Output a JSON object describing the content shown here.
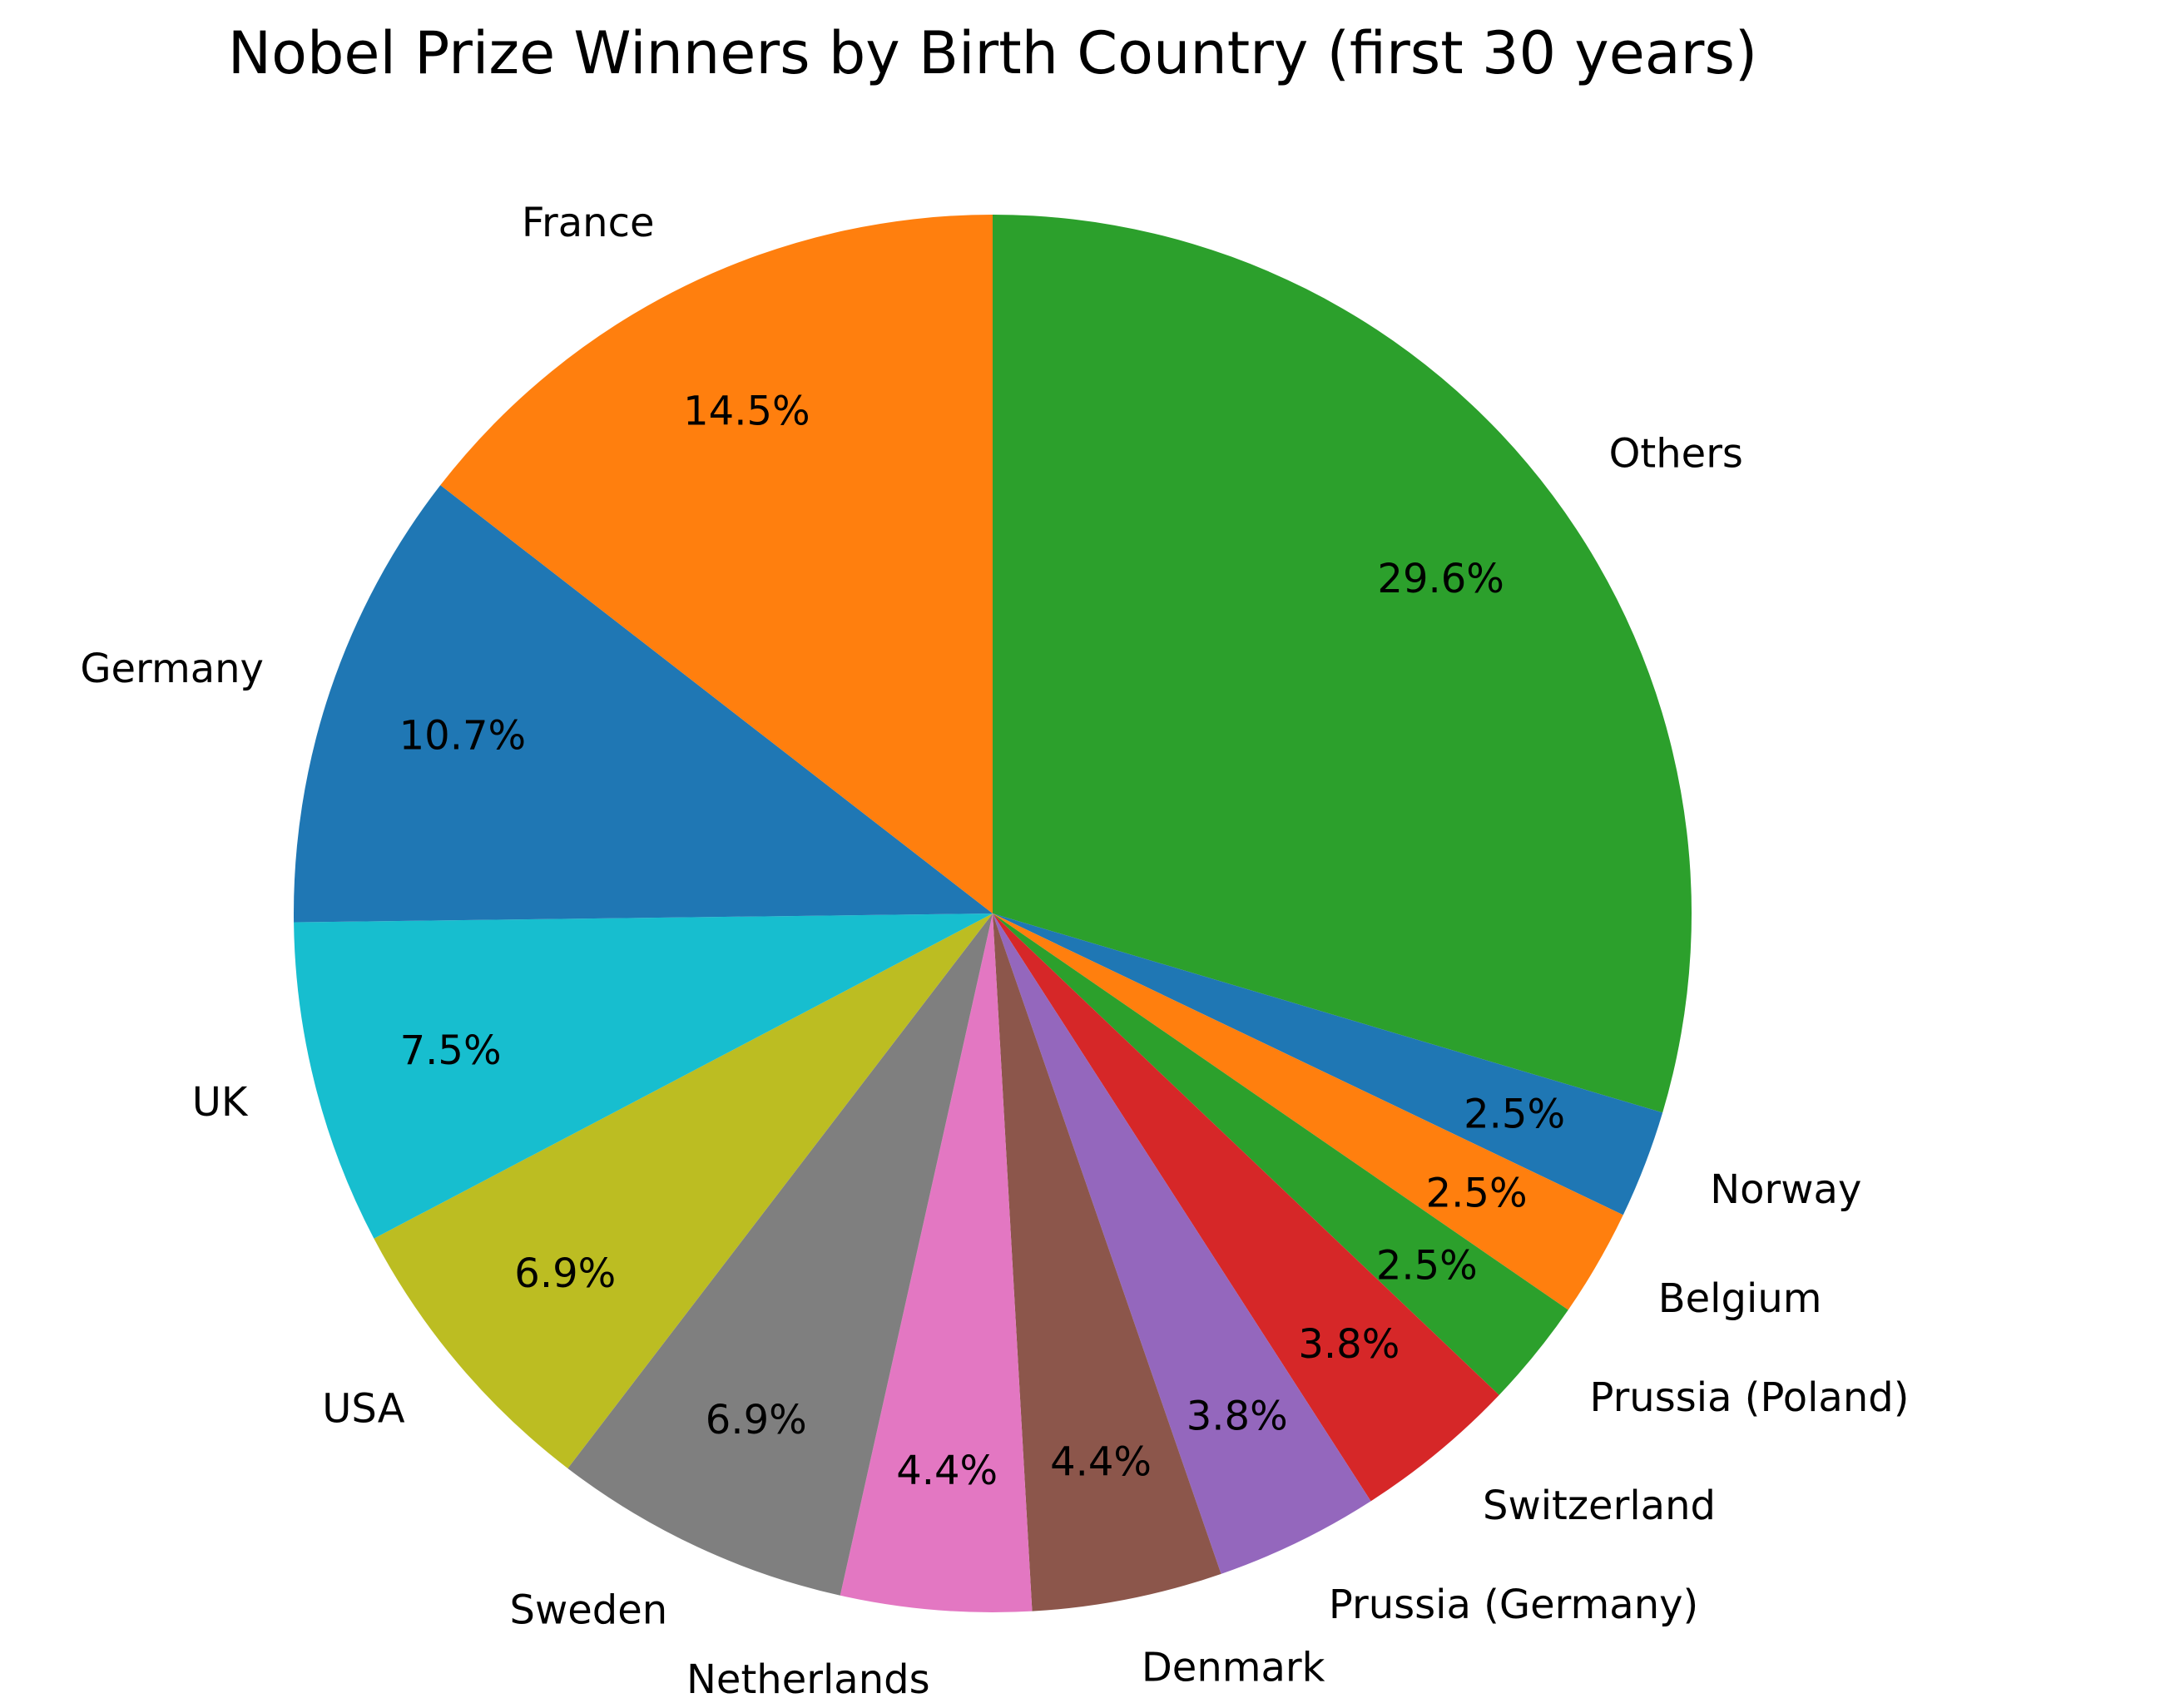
{
  "chart_data": {
    "type": "pie",
    "title": "Nobel Prize Winners by Birth Country (first 30 years)",
    "start_angle_deg": 90,
    "direction": "clockwise",
    "slices": [
      {
        "label": "Others",
        "value": 29.6,
        "pct_text": "29.6%",
        "color": "#2ca02c"
      },
      {
        "label": "Norway",
        "value": 2.5,
        "pct_text": "2.5%",
        "color": "#1f77b4"
      },
      {
        "label": "Belgium",
        "value": 2.5,
        "pct_text": "2.5%",
        "color": "#ff7f0e"
      },
      {
        "label": "Prussia (Poland)",
        "value": 2.5,
        "pct_text": "2.5%",
        "color": "#2ca02c"
      },
      {
        "label": "Switzerland",
        "value": 3.8,
        "pct_text": "3.8%",
        "color": "#d62728"
      },
      {
        "label": "Prussia (Germany)",
        "value": 3.8,
        "pct_text": "3.8%",
        "color": "#9467bd"
      },
      {
        "label": "Denmark",
        "value": 4.4,
        "pct_text": "4.4%",
        "color": "#8c564b"
      },
      {
        "label": "Netherlands",
        "value": 4.4,
        "pct_text": "4.4%",
        "color": "#e377c2"
      },
      {
        "label": "Sweden",
        "value": 6.9,
        "pct_text": "6.9%",
        "color": "#7f7f7f"
      },
      {
        "label": "USA",
        "value": 6.9,
        "pct_text": "6.9%",
        "color": "#bcbd22"
      },
      {
        "label": "UK",
        "value": 7.5,
        "pct_text": "7.5%",
        "color": "#17becf"
      },
      {
        "label": "Germany",
        "value": 10.7,
        "pct_text": "10.7%",
        "color": "#1f77b4"
      },
      {
        "label": "France",
        "value": 14.5,
        "pct_text": "14.5%",
        "color": "#ff7f0e"
      }
    ]
  }
}
